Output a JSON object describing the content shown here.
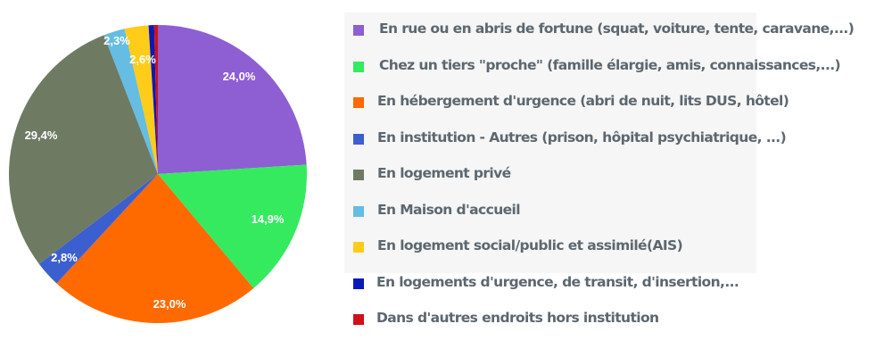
{
  "chart_data": {
    "type": "pie",
    "title": "",
    "start": "top, clockwise",
    "legend_placement": "right",
    "slices": [
      {
        "label": "En rue ou en abris de fortune  (squat, voiture, tente, caravane,...)",
        "value": 24.0,
        "display": "24,0%",
        "color": "#8d5fd3"
      },
      {
        "label": "Chez un tiers \"proche\" (famille élargie, amis, connaissances,...)",
        "value": 14.9,
        "display": "14,9%",
        "color": "#35ea5f"
      },
      {
        "label": "En hébergement d'urgence (abri de nuit, lits DUS, hôtel)",
        "value": 23.0,
        "display": "23,0%",
        "color": "#ff6a00"
      },
      {
        "label": "En institution -  Autres (prison, hôpital psychiatrique,  ...)",
        "value": 2.8,
        "display": "2,8%",
        "color": "#3c5fcf"
      },
      {
        "label": "En logement privé",
        "value": 29.4,
        "display": "29,4%",
        "color": "#6f7a63"
      },
      {
        "label": "En Maison d'accueil",
        "value": 2.3,
        "display": "2,3%",
        "color": "#65bde3"
      },
      {
        "label": "En logement social/public et assimilé(AIS)",
        "value": 2.6,
        "display": "2,6%",
        "color": "#ffcc1a"
      },
      {
        "label": "En logements d'urgence, de transit, d'insertion,...",
        "value": 0.6,
        "display": "",
        "color": "#0a1ab8"
      },
      {
        "label": "Dans d'autres endroits hors institution",
        "value": 0.4,
        "display": "",
        "color": "#d0101a"
      }
    ]
  }
}
